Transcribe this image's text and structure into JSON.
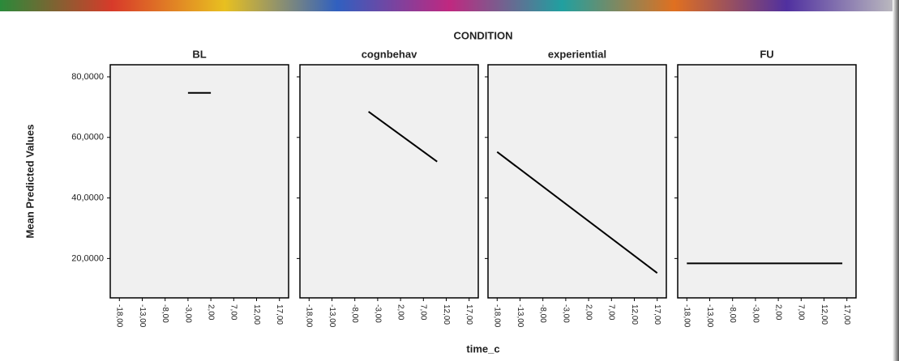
{
  "figure": {
    "title": "CONDITION",
    "ylabel": "Mean Predicted Values",
    "xlabel": "time_c"
  },
  "chart_data": [
    {
      "type": "line",
      "title": "BL",
      "x": [
        -3,
        2
      ],
      "series": [
        {
          "color": "#000000",
          "values": [
            74.7,
            74.7
          ]
        }
      ],
      "xlim": [
        -20,
        19
      ],
      "ylim": [
        7,
        84
      ],
      "xticks": [
        {
          "value": -18,
          "label": "-18,00"
        },
        {
          "value": -13,
          "label": "-13,00"
        },
        {
          "value": -8,
          "label": "-8,00"
        },
        {
          "value": -3,
          "label": "-3,00"
        },
        {
          "value": 2,
          "label": "2,00"
        },
        {
          "value": 7,
          "label": "7,00"
        },
        {
          "value": 12,
          "label": "12,00"
        },
        {
          "value": 17,
          "label": "17,00"
        }
      ],
      "yticks": [
        {
          "value": 20,
          "label": "20,0000"
        },
        {
          "value": 40,
          "label": "40,0000"
        },
        {
          "value": 60,
          "label": "60,0000"
        },
        {
          "value": 80,
          "label": "80,0000"
        }
      ]
    },
    {
      "type": "line",
      "title": "cognbehav",
      "x": [
        -5,
        10
      ],
      "series": [
        {
          "color": "#000000",
          "values": [
            68.5,
            52
          ]
        }
      ],
      "xlim": [
        -20,
        19
      ],
      "ylim": [
        7,
        84
      ],
      "xticks": [
        {
          "value": -18,
          "label": "-18,00"
        },
        {
          "value": -13,
          "label": "-13,00"
        },
        {
          "value": -8,
          "label": "-8,00"
        },
        {
          "value": -3,
          "label": "-3,00"
        },
        {
          "value": 2,
          "label": "2,00"
        },
        {
          "value": 7,
          "label": "7,00"
        },
        {
          "value": 12,
          "label": "12,00"
        },
        {
          "value": 17,
          "label": "17,00"
        }
      ],
      "yticks": [
        20,
        40,
        60,
        80
      ]
    },
    {
      "type": "line",
      "title": "experiential",
      "x": [
        -18,
        17
      ],
      "series": [
        {
          "color": "#000000",
          "values": [
            55.2,
            15.2
          ]
        }
      ],
      "xlim": [
        -20,
        19
      ],
      "ylim": [
        7,
        84
      ],
      "xticks": [
        {
          "value": -18,
          "label": "-18,00"
        },
        {
          "value": -13,
          "label": "-13,00"
        },
        {
          "value": -8,
          "label": "-8,00"
        },
        {
          "value": -3,
          "label": "-3,00"
        },
        {
          "value": 2,
          "label": "2,00"
        },
        {
          "value": 7,
          "label": "7,00"
        },
        {
          "value": 12,
          "label": "12,00"
        },
        {
          "value": 17,
          "label": "17,00"
        }
      ],
      "yticks": [
        20,
        40,
        60,
        80
      ]
    },
    {
      "type": "line",
      "title": "FU",
      "x": [
        -18,
        16
      ],
      "series": [
        {
          "color": "#000000",
          "values": [
            18.4,
            18.4
          ]
        }
      ],
      "xlim": [
        -20,
        19
      ],
      "ylim": [
        7,
        84
      ],
      "xticks": [
        {
          "value": -18,
          "label": "-18,00"
        },
        {
          "value": -13,
          "label": "-13,00"
        },
        {
          "value": -8,
          "label": "-8,00"
        },
        {
          "value": -3,
          "label": "-3,00"
        },
        {
          "value": 2,
          "label": "2,00"
        },
        {
          "value": 7,
          "label": "7,00"
        },
        {
          "value": 12,
          "label": "12,00"
        },
        {
          "value": 17,
          "label": "17,00"
        }
      ],
      "yticks": [
        20,
        40,
        60,
        80
      ]
    }
  ]
}
